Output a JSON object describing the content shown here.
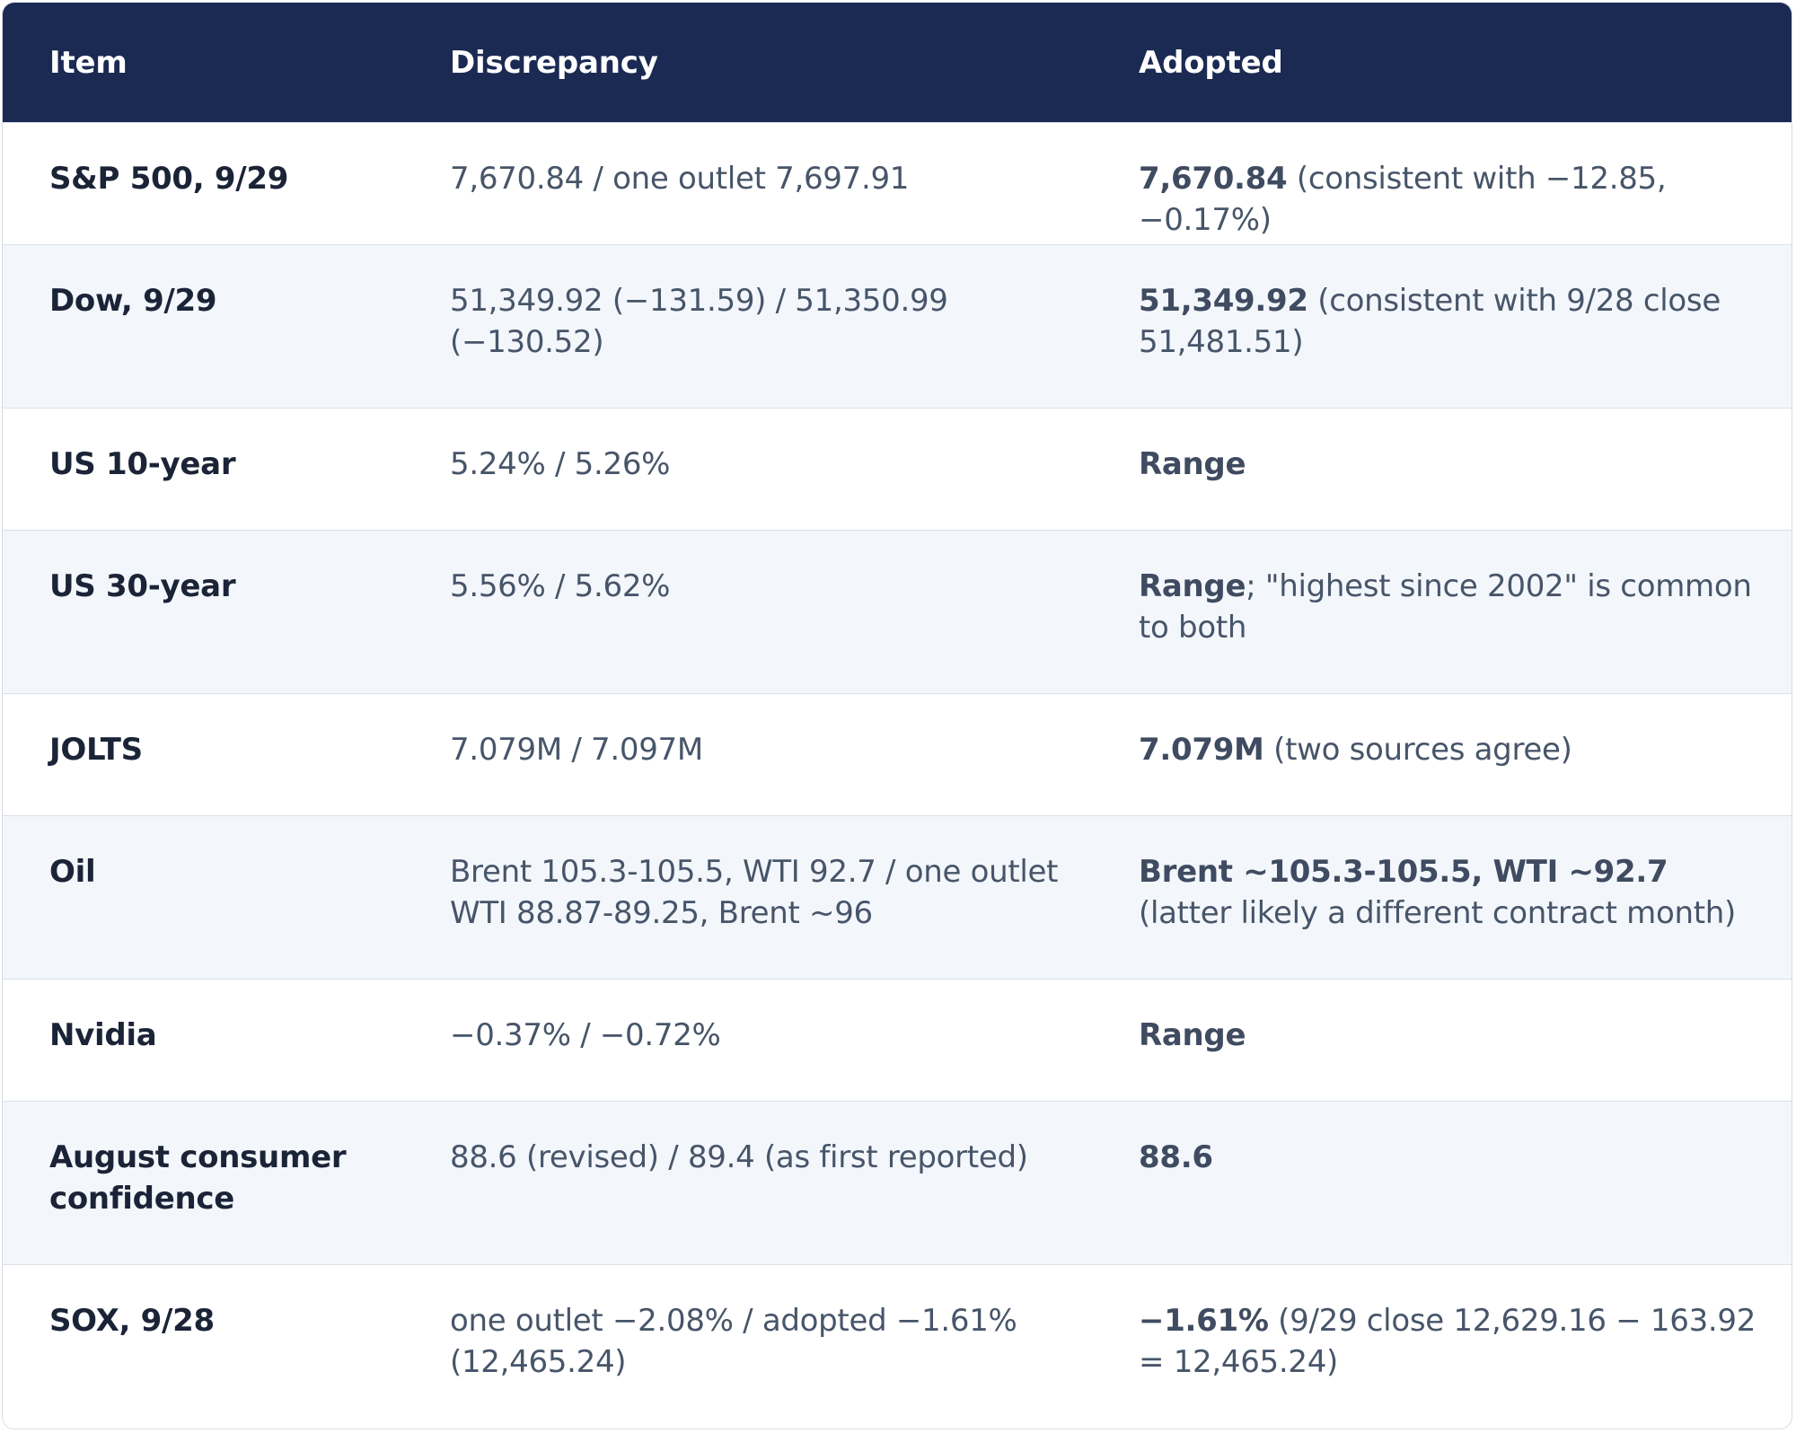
{
  "table": {
    "headers": {
      "item": "Item",
      "discrepancy": "Discrepancy",
      "adopted": "Adopted"
    },
    "rows": [
      {
        "item": "S&P 500, 9/29",
        "discrepancy": "7,670.84 / one outlet 7,697.91",
        "adopted_bold": "7,670.84",
        "adopted_rest": " (consistent with −12.85, −0.17%)"
      },
      {
        "item": "Dow, 9/29",
        "discrepancy": "51,349.92 (−131.59) / 51,350.99 (−130.52)",
        "adopted_bold": "51,349.92",
        "adopted_rest": " (consistent with 9/28 close 51,481.51)"
      },
      {
        "item": "US 10-year",
        "discrepancy": "5.24% / 5.26%",
        "adopted_bold": "Range",
        "adopted_rest": ""
      },
      {
        "item": "US 30-year",
        "discrepancy": "5.56% / 5.62%",
        "adopted_bold": "Range",
        "adopted_rest": "; \"highest since 2002\" is common to both"
      },
      {
        "item": "JOLTS",
        "discrepancy": "7.079M / 7.097M",
        "adopted_bold": "7.079M",
        "adopted_rest": " (two sources agree)"
      },
      {
        "item": "Oil",
        "discrepancy": "Brent 105.3-105.5, WTI 92.7 / one outlet WTI 88.87-89.25, Brent ~96",
        "adopted_bold": "Brent ~105.3-105.5, WTI ~92.7",
        "adopted_rest": " (latter likely a different contract month)"
      },
      {
        "item": "Nvidia",
        "discrepancy": "−0.37% / −0.72%",
        "adopted_bold": "Range",
        "adopted_rest": ""
      },
      {
        "item": "August consumer confidence",
        "discrepancy": "88.6 (revised) / 89.4 (as first reported)",
        "adopted_bold": "88.6",
        "adopted_rest": ""
      },
      {
        "item": "SOX, 9/28",
        "discrepancy": "one outlet −2.08% / adopted −1.61% (12,465.24)",
        "adopted_bold": "−1.61%",
        "adopted_rest": " (9/29 close 12,629.16 − 163.92 = 12,465.24)"
      }
    ]
  }
}
